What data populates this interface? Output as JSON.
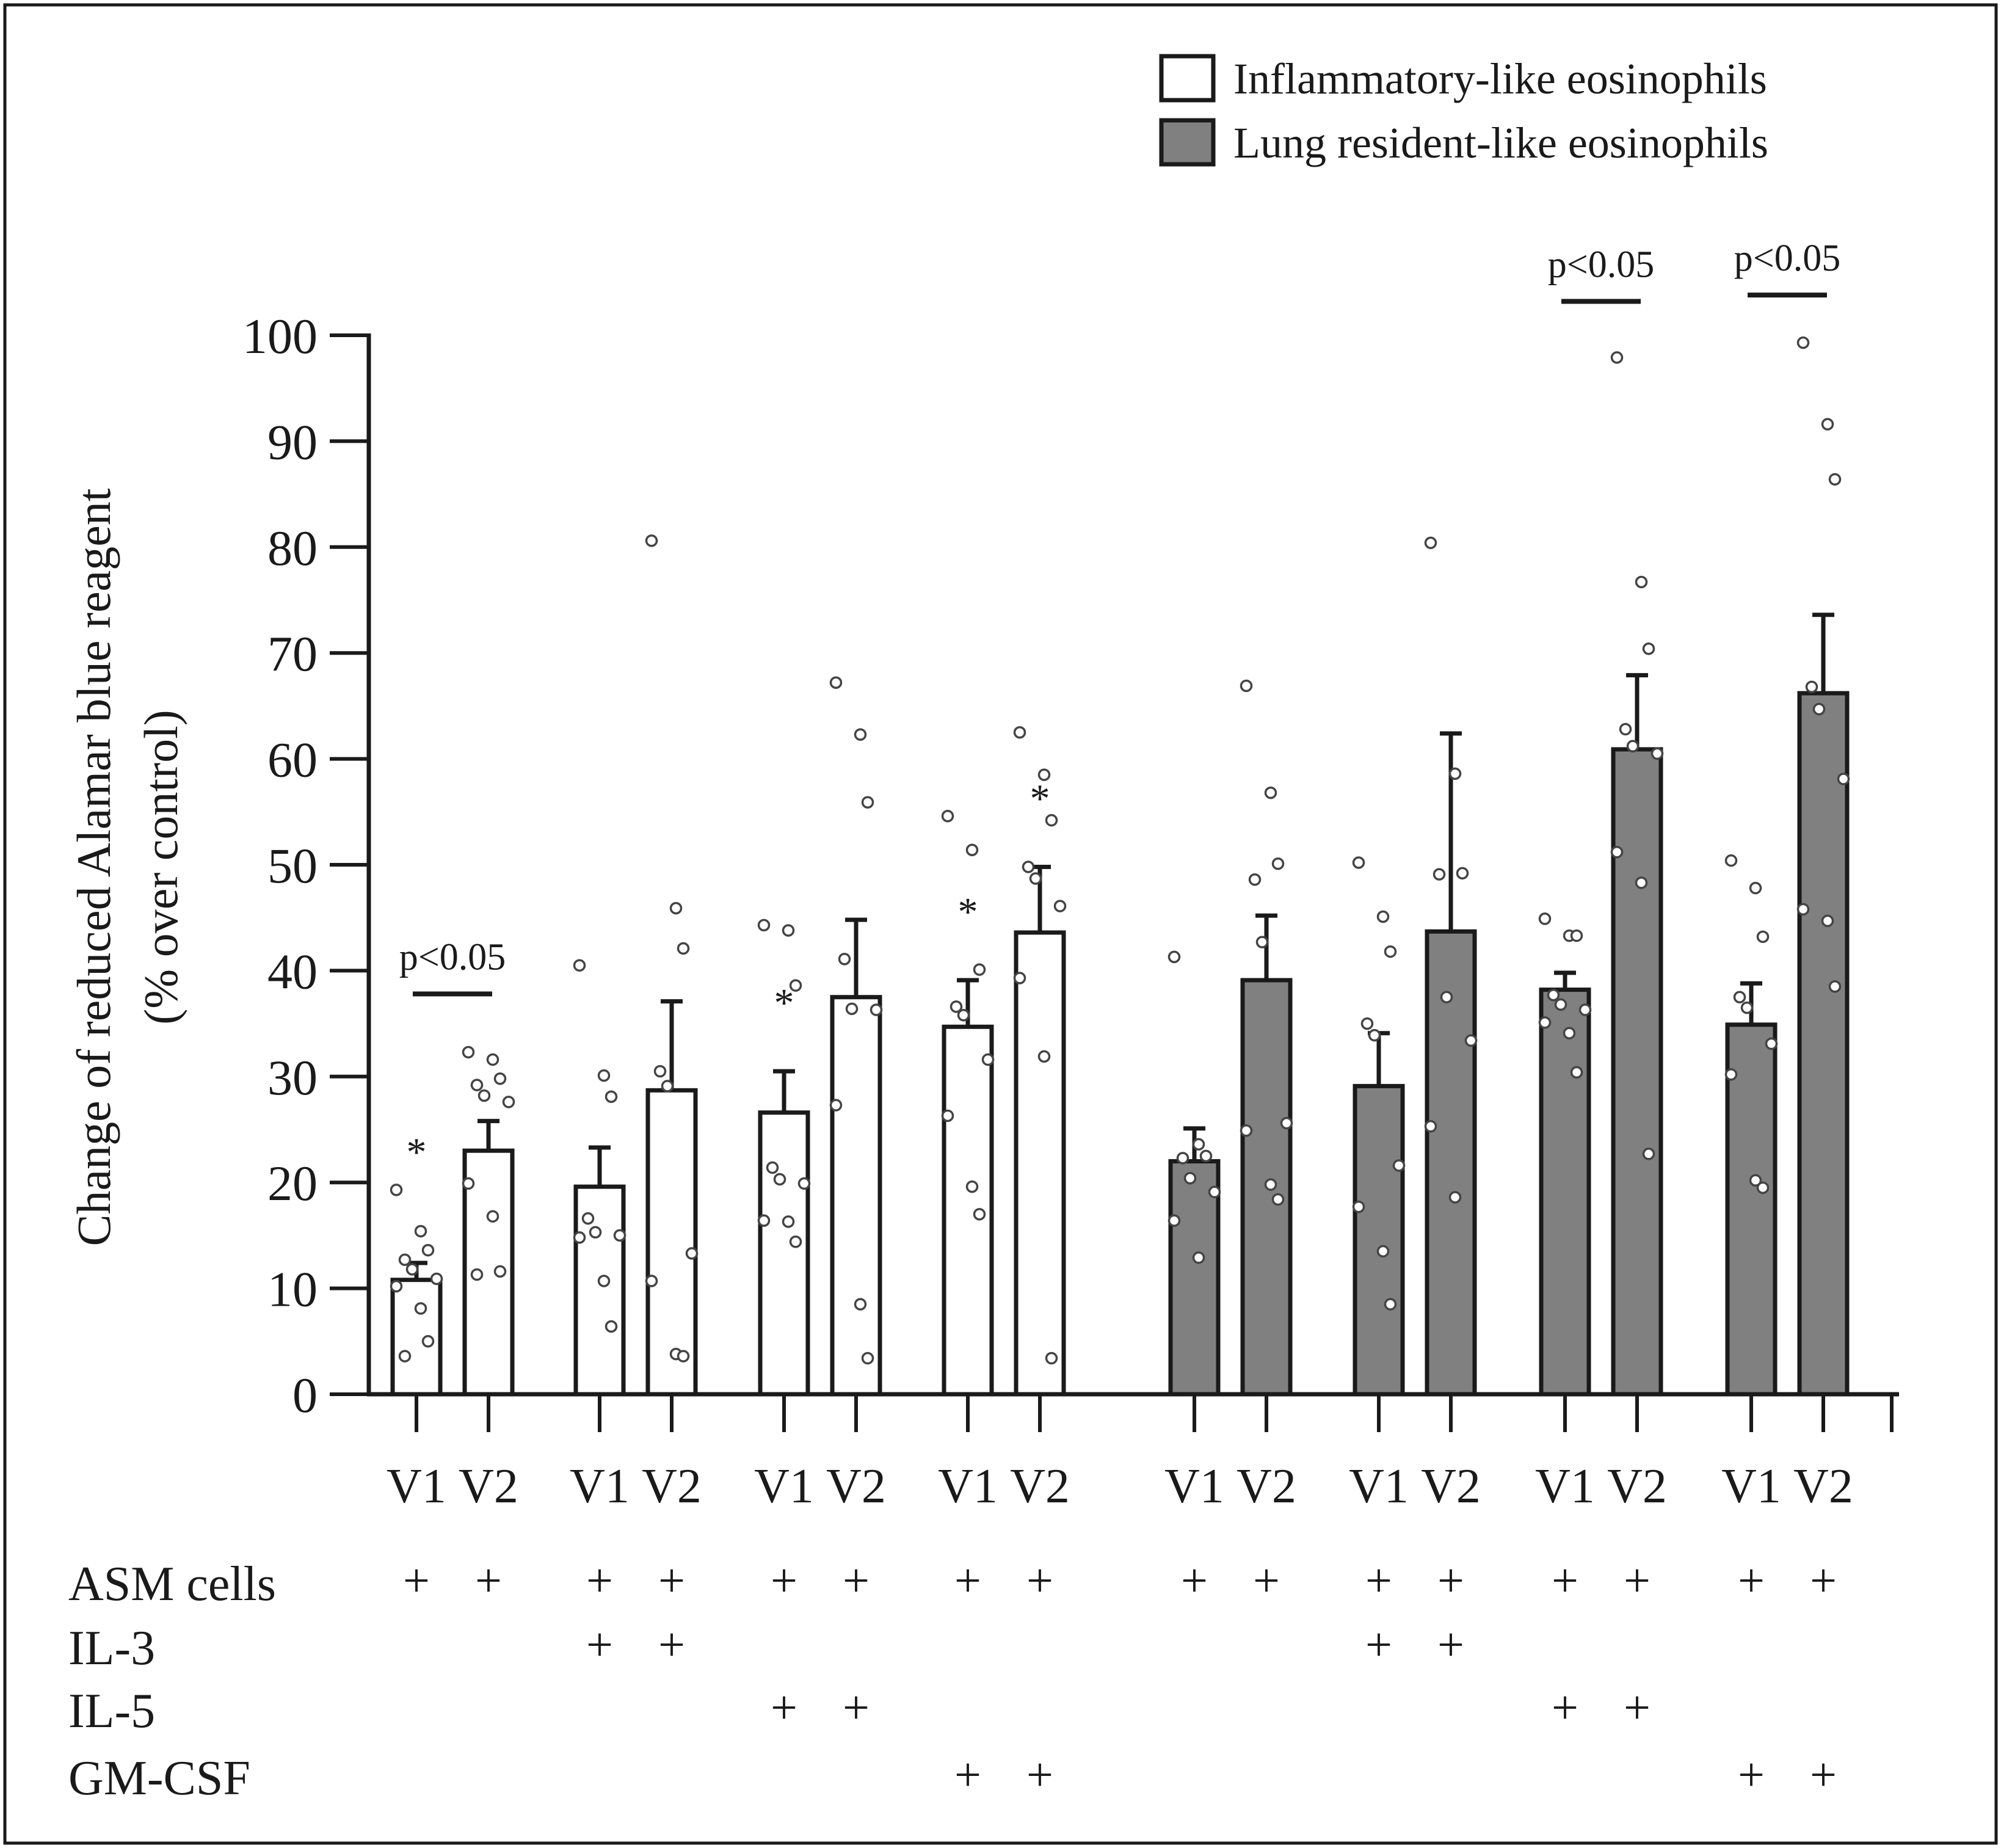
{
  "chart_data": {
    "type": "bar",
    "ylabel_line1": "Change of reduced Alamar blue reagent",
    "ylabel_line2": "(% over control)",
    "ylim": [
      0,
      100
    ],
    "yticks": [
      0,
      10,
      20,
      30,
      40,
      50,
      60,
      70,
      80,
      90,
      100
    ],
    "legend": [
      {
        "name": "Inflammatory-like eosinophils",
        "fill": "#ffffff"
      },
      {
        "name": "Lung resident-like eosinophils",
        "fill": "#808080"
      }
    ],
    "bars": [
      {
        "label": "V1",
        "group": 0,
        "series": 0,
        "value": 10.8,
        "err": 1.6,
        "star": true,
        "points": [
          19.3,
          15.4,
          13.6,
          12.7,
          11.8,
          10.9,
          10.2,
          8.1,
          5.0,
          3.6
        ]
      },
      {
        "label": "V2",
        "group": 0,
        "series": 0,
        "value": 23.0,
        "err": 2.8,
        "star": false,
        "points": [
          32.3,
          31.6,
          29.8,
          29.2,
          28.2,
          27.6,
          19.9,
          16.8,
          11.6,
          11.3
        ]
      },
      {
        "label": "V1",
        "group": 1,
        "series": 0,
        "value": 19.6,
        "err": 3.7,
        "star": false,
        "points": [
          40.5,
          30.1,
          28.1,
          16.6,
          15.3,
          15.0,
          14.8,
          10.7,
          6.4
        ]
      },
      {
        "label": "V2",
        "group": 1,
        "series": 0,
        "value": 28.7,
        "err": 8.4,
        "star": false,
        "points": [
          80.6,
          45.9,
          42.1,
          30.5,
          29.1,
          13.3,
          10.7,
          3.8,
          3.6
        ]
      },
      {
        "label": "V1",
        "group": 2,
        "series": 0,
        "value": 26.6,
        "err": 3.9,
        "star": true,
        "points": [
          44.3,
          43.8,
          38.6,
          21.4,
          20.3,
          19.9,
          16.4,
          16.3,
          14.4
        ]
      },
      {
        "label": "V2",
        "group": 2,
        "series": 0,
        "value": 37.5,
        "err": 7.3,
        "star": false,
        "points": [
          67.2,
          62.3,
          55.9,
          41.1,
          36.4,
          36.3,
          27.3,
          8.5,
          3.4
        ]
      },
      {
        "label": "V1",
        "group": 3,
        "series": 0,
        "value": 34.7,
        "err": 4.4,
        "star": true,
        "points": [
          54.6,
          51.4,
          40.1,
          36.6,
          35.8,
          31.6,
          26.3,
          19.6,
          17.0
        ]
      },
      {
        "label": "V2",
        "group": 3,
        "series": 0,
        "value": 43.6,
        "err": 6.2,
        "star": true,
        "points": [
          62.5,
          58.5,
          54.2,
          49.8,
          48.7,
          46.1,
          39.3,
          31.9,
          3.4
        ]
      },
      {
        "label": "V1",
        "group": 4,
        "series": 1,
        "value": 22.0,
        "err": 3.1,
        "star": false,
        "points": [
          41.3,
          23.6,
          22.5,
          22.3,
          20.4,
          19.1,
          16.4,
          12.9
        ]
      },
      {
        "label": "V2",
        "group": 4,
        "series": 1,
        "value": 39.1,
        "err": 6.1,
        "star": false,
        "points": [
          66.9,
          56.8,
          50.1,
          48.6,
          42.7,
          25.6,
          24.9,
          19.8,
          18.4
        ]
      },
      {
        "label": "V1",
        "group": 5,
        "series": 1,
        "value": 29.1,
        "err": 5.0,
        "star": false,
        "points": [
          50.2,
          45.1,
          41.8,
          35.0,
          33.9,
          21.6,
          17.7,
          13.5,
          8.5
        ]
      },
      {
        "label": "V2",
        "group": 5,
        "series": 1,
        "value": 43.7,
        "err": 18.7,
        "star": false,
        "points": [
          80.4,
          58.6,
          49.2,
          49.1,
          37.5,
          33.4,
          25.3,
          18.6
        ]
      },
      {
        "label": "V1",
        "group": 6,
        "series": 1,
        "value": 38.2,
        "err": 1.6,
        "star": false,
        "points": [
          44.9,
          43.3,
          43.3,
          37.7,
          36.8,
          36.3,
          35.1,
          34.1,
          30.4
        ]
      },
      {
        "label": "V2",
        "group": 6,
        "series": 1,
        "value": 60.9,
        "err": 7.0,
        "star": false,
        "points": [
          97.9,
          76.7,
          70.4,
          62.8,
          61.2,
          60.5,
          51.2,
          48.3,
          22.7
        ]
      },
      {
        "label": "V1",
        "group": 7,
        "series": 1,
        "value": 34.9,
        "err": 3.9,
        "star": false,
        "points": [
          50.4,
          47.8,
          43.2,
          37.5,
          36.5,
          33.1,
          30.2,
          20.2,
          19.5
        ]
      },
      {
        "label": "V2",
        "group": 7,
        "series": 1,
        "value": 66.2,
        "err": 7.4,
        "star": false,
        "points": [
          99.3,
          91.6,
          86.4,
          66.8,
          64.7,
          58.1,
          45.8,
          44.7,
          38.5
        ]
      }
    ],
    "significance": [
      {
        "group": 0,
        "text": "p<0.05",
        "y": 37.8
      },
      {
        "group": 6,
        "text": "p<0.05",
        "y": 103.2
      },
      {
        "group": 7,
        "text": "p<0.05",
        "y": 103.8
      }
    ],
    "star_text": "*",
    "condition_rows": [
      {
        "label": "ASM cells",
        "groups": [
          0,
          1,
          2,
          3,
          4,
          5,
          6,
          7
        ]
      },
      {
        "label": "IL-3",
        "groups": [
          1,
          5
        ]
      },
      {
        "label": "IL-5",
        "groups": [
          2,
          6
        ]
      },
      {
        "label": "GM-CSF",
        "groups": [
          3,
          7
        ]
      }
    ],
    "plus_text": "+"
  }
}
